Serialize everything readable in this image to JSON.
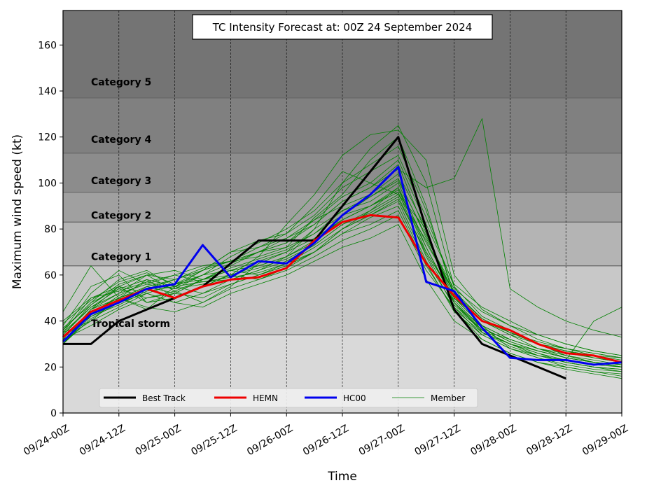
{
  "chart_data": {
    "type": "line",
    "title": "TC Intensity Forecast at: 00Z 24 September 2024",
    "xlabel": "Time",
    "ylabel": "Maximum wind speed (kt)",
    "ylim": [
      0,
      175
    ],
    "xlim_hours": [
      0,
      120
    ],
    "x_tick_hours": [
      0,
      12,
      24,
      36,
      48,
      60,
      72,
      84,
      96,
      108,
      120
    ],
    "x_tick_labels": [
      "09/24-00Z",
      "09/24-12Z",
      "09/25-00Z",
      "09/25-12Z",
      "09/26-00Z",
      "09/26-12Z",
      "09/27-00Z",
      "09/27-12Z",
      "09/28-00Z",
      "09/28-12Z",
      "09/29-00Z"
    ],
    "y_ticks": [
      0,
      20,
      40,
      60,
      80,
      100,
      120,
      140,
      160
    ],
    "grid": "vertical dashed",
    "legend_placement": "lower-center",
    "categories_bands": [
      {
        "label": "",
        "ymin": 0,
        "ymax": 34,
        "color": "#d9d9d9"
      },
      {
        "label": "Tropical storm",
        "ymin": 34,
        "ymax": 64,
        "color": "#c8c8c8"
      },
      {
        "label": "Category 1",
        "ymin": 64,
        "ymax": 83,
        "color": "#b4b4b4"
      },
      {
        "label": "Category 2",
        "ymin": 83,
        "ymax": 96,
        "color": "#a0a0a0"
      },
      {
        "label": "Category 3",
        "ymin": 96,
        "ymax": 113,
        "color": "#8c8c8c"
      },
      {
        "label": "Category 4",
        "ymin": 113,
        "ymax": 137,
        "color": "#808080"
      },
      {
        "label": "Category 5",
        "ymin": 137,
        "ymax": 175,
        "color": "#747474"
      }
    ],
    "x_hours": [
      0,
      6,
      12,
      18,
      24,
      30,
      36,
      42,
      48,
      54,
      60,
      66,
      72,
      78,
      84,
      90,
      96,
      102,
      108,
      114,
      120
    ],
    "series": [
      {
        "name": "Best Track",
        "color": "#000000",
        "width": 3,
        "values": [
          30,
          30,
          40,
          45,
          50,
          55,
          65,
          75,
          75,
          75,
          90,
          105,
          120,
          80,
          45,
          30,
          25,
          20,
          15,
          null,
          null
        ]
      },
      {
        "name": "HEMN",
        "color": "#ee0000",
        "width": 3,
        "values": [
          33,
          44,
          49,
          54,
          50,
          55,
          58,
          59,
          63,
          75,
          83,
          86,
          85,
          65,
          51,
          40,
          36,
          30,
          26,
          25,
          22
        ]
      },
      {
        "name": "HC00",
        "color": "#0000ee",
        "width": 3,
        "values": [
          31,
          43,
          48,
          54,
          56,
          73,
          59,
          66,
          65,
          74,
          86,
          95,
          107,
          57,
          53,
          37,
          24,
          23,
          23,
          21,
          22
        ]
      },
      {
        "name": "Member",
        "color": "#008000",
        "width": 0.8,
        "members": [
          [
            30,
            45,
            55,
            52,
            48,
            52,
            58,
            62,
            68,
            80,
            100,
            115,
            125,
            100,
            55,
            35,
            30,
            25,
            22,
            20,
            18
          ],
          [
            35,
            40,
            50,
            58,
            55,
            60,
            65,
            70,
            72,
            85,
            95,
            110,
            120,
            90,
            50,
            38,
            28,
            24,
            20,
            18,
            17
          ],
          [
            44,
            64,
            50,
            45,
            55,
            62,
            70,
            75,
            78,
            90,
            105,
            100,
            95,
            80,
            45,
            32,
            26,
            22,
            19,
            17,
            15
          ],
          [
            32,
            38,
            45,
            50,
            52,
            58,
            62,
            60,
            65,
            70,
            80,
            88,
            98,
            70,
            50,
            40,
            35,
            30,
            25,
            22,
            20
          ],
          [
            38,
            55,
            60,
            48,
            50,
            55,
            60,
            68,
            82,
            95,
            112,
            121,
            123,
            110,
            60,
            45,
            38,
            32,
            28,
            25,
            24
          ],
          [
            30,
            42,
            48,
            55,
            58,
            63,
            66,
            70,
            74,
            84,
            90,
            95,
            104,
            80,
            48,
            36,
            30,
            27,
            24,
            22,
            21
          ],
          [
            36,
            48,
            58,
            62,
            55,
            52,
            56,
            60,
            64,
            70,
            78,
            85,
            90,
            65,
            44,
            34,
            28,
            25,
            23,
            40,
            46
          ],
          [
            40,
            50,
            53,
            57,
            60,
            57,
            58,
            62,
            66,
            73,
            82,
            88,
            95,
            75,
            52,
            38,
            32,
            28,
            25,
            22,
            20
          ],
          [
            31,
            45,
            52,
            60,
            53,
            48,
            55,
            65,
            70,
            80,
            88,
            92,
            100,
            72,
            48,
            35,
            30,
            26,
            22,
            20,
            19
          ],
          [
            33,
            44,
            50,
            54,
            58,
            62,
            70,
            72,
            78,
            86,
            98,
            105,
            112,
            85,
            55,
            42,
            36,
            30,
            27,
            25,
            23
          ],
          [
            34,
            46,
            54,
            58,
            50,
            55,
            60,
            58,
            62,
            68,
            75,
            80,
            86,
            62,
            46,
            36,
            32,
            28,
            26,
            24,
            22
          ],
          [
            35,
            50,
            55,
            48,
            52,
            58,
            64,
            70,
            76,
            82,
            92,
            98,
            108,
            78,
            50,
            40,
            34,
            30,
            28,
            26,
            24
          ],
          [
            32,
            40,
            46,
            52,
            56,
            60,
            62,
            66,
            70,
            76,
            84,
            90,
            96,
            68,
            46,
            34,
            28,
            24,
            21,
            19,
            18
          ],
          [
            37,
            47,
            55,
            60,
            62,
            58,
            60,
            64,
            68,
            74,
            86,
            94,
            102,
            76,
            54,
            44,
            38,
            34,
            30,
            27,
            25
          ],
          [
            30,
            43,
            48,
            52,
            48,
            46,
            52,
            56,
            60,
            66,
            72,
            76,
            82,
            58,
            40,
            32,
            26,
            22,
            20,
            18,
            16
          ],
          [
            36,
            52,
            62,
            56,
            54,
            60,
            68,
            74,
            80,
            88,
            100,
            108,
            116,
            88,
            52,
            40,
            34,
            28,
            24,
            22,
            20
          ],
          [
            31,
            44,
            50,
            46,
            44,
            48,
            54,
            58,
            63,
            70,
            80,
            86,
            92,
            66,
            47,
            36,
            30,
            26,
            23,
            21,
            20
          ],
          [
            39,
            49,
            57,
            61,
            56,
            62,
            66,
            72,
            76,
            84,
            94,
            100,
            110,
            82,
            56,
            46,
            40,
            34,
            30,
            27,
            25
          ],
          [
            33,
            42,
            47,
            53,
            55,
            57,
            59,
            61,
            65,
            72,
            80,
            86,
            93,
            70,
            50,
            38,
            32,
            28,
            25,
            23,
            21
          ],
          [
            35,
            46,
            52,
            56,
            60,
            64,
            66,
            68,
            72,
            78,
            86,
            90,
            98,
            74,
            53,
            41,
            35,
            30,
            27,
            24,
            22
          ],
          [
            32,
            45,
            50,
            55,
            52,
            50,
            56,
            60,
            64,
            70,
            78,
            82,
            88,
            64,
            45,
            35,
            29,
            25,
            22,
            20,
            19
          ],
          [
            34,
            47,
            56,
            60,
            58,
            62,
            66,
            70,
            74,
            82,
            92,
            98,
            106,
            98,
            102,
            128,
            54,
            46,
            40,
            36,
            33
          ],
          [
            30,
            41,
            48,
            54,
            56,
            58,
            62,
            64,
            68,
            75,
            84,
            90,
            97,
            72,
            49,
            37,
            31,
            27,
            24,
            22,
            20
          ],
          [
            36,
            48,
            54,
            50,
            53,
            58,
            63,
            67,
            71,
            78,
            88,
            94,
            101,
            77,
            52,
            41,
            35,
            31,
            28,
            26,
            24
          ],
          [
            33,
            43,
            51,
            57,
            54,
            56,
            60,
            63,
            67,
            73,
            82,
            87,
            94,
            69,
            48,
            37,
            31,
            27,
            24,
            22,
            21
          ]
        ]
      }
    ],
    "legend": [
      "Best Track",
      "HEMN",
      "HC00",
      "Member"
    ]
  }
}
